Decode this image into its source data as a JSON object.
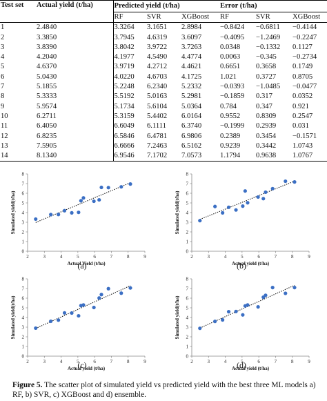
{
  "table": {
    "headers": {
      "test_set": "Test set",
      "actual_yield": "Actual yield (t/ha)",
      "predicted_group": "Predicted yield (t/ha)",
      "error_group": "Error (t/ha)",
      "models": [
        "RF",
        "SVR",
        "XGBoost"
      ]
    },
    "rows": [
      {
        "test": "1",
        "actual": "2.4840",
        "rf": "3.3264",
        "svr": "3.1651",
        "xgb": "2.8984",
        "e_rf": "−0.8424",
        "e_svr": "−0.6811",
        "e_xgb": "−0.4144"
      },
      {
        "test": "2",
        "actual": "3.3850",
        "rf": "3.7945",
        "svr": "4.6319",
        "xgb": "3.6097",
        "e_rf": "−0.4095",
        "e_svr": "−1.2469",
        "e_xgb": "−0.2247"
      },
      {
        "test": "3",
        "actual": "3.8390",
        "rf": "3.8042",
        "svr": "3.9722",
        "xgb": "3.7263",
        "e_rf": "0.0348",
        "e_svr": "−0.1332",
        "e_xgb": "0.1127"
      },
      {
        "test": "4",
        "actual": "4.2040",
        "rf": "4.1977",
        "svr": "4.5490",
        "xgb": "4.4774",
        "e_rf": "0.0063",
        "e_svr": "−0.345",
        "e_xgb": "−0.2734"
      },
      {
        "test": "5",
        "actual": "4.6370",
        "rf": "3.9719",
        "svr": "4.2712",
        "xgb": "4.4621",
        "e_rf": "0.6651",
        "e_svr": "0.3658",
        "e_xgb": "0.1749"
      },
      {
        "test": "6",
        "actual": "5.0430",
        "rf": "4.0220",
        "svr": "4.6703",
        "xgb": "4.1725",
        "e_rf": "1.021",
        "e_svr": "0.3727",
        "e_xgb": "0.8705"
      },
      {
        "test": "7",
        "actual": "5.1855",
        "rf": "5.2248",
        "svr": "6.2340",
        "xgb": "5.2332",
        "e_rf": "−0.0393",
        "e_svr": "−1.0485",
        "e_xgb": "−0.0477"
      },
      {
        "test": "8",
        "actual": "5.3333",
        "rf": "5.5192",
        "svr": "5.0163",
        "xgb": "5.2981",
        "e_rf": "−0.1859",
        "e_svr": "0.317",
        "e_xgb": "0.0352"
      },
      {
        "test": "9",
        "actual": "5.9574",
        "rf": "5.1734",
        "svr": "5.6104",
        "xgb": "5.0364",
        "e_rf": "0.784",
        "e_svr": "0.347",
        "e_xgb": "0.921"
      },
      {
        "test": "10",
        "actual": "6.2711",
        "rf": "5.3159",
        "svr": "5.4402",
        "xgb": "6.0164",
        "e_rf": "0.9552",
        "e_svr": "0.8309",
        "e_xgb": "0.2547"
      },
      {
        "test": "11",
        "actual": "6.4050",
        "rf": "6.6049",
        "svr": "6.1111",
        "xgb": "6.3740",
        "e_rf": "−0.1999",
        "e_svr": "0.2939",
        "e_xgb": "0.031"
      },
      {
        "test": "12",
        "actual": "6.8235",
        "rf": "6.5846",
        "svr": "6.4781",
        "xgb": "6.9806",
        "e_rf": "0.2389",
        "e_svr": "0.3454",
        "e_xgb": "−0.1571"
      },
      {
        "test": "13",
        "actual": "7.5905",
        "rf": "6.6666",
        "svr": "7.2463",
        "xgb": "6.5162",
        "e_rf": "0.9239",
        "e_svr": "0.3442",
        "e_xgb": "1.0743"
      },
      {
        "test": "14",
        "actual": "8.1340",
        "rf": "6.9546",
        "svr": "7.1702",
        "xgb": "7.0573",
        "e_rf": "1.1794",
        "e_svr": "0.9638",
        "e_xgb": "1.0767"
      }
    ]
  },
  "chart_data": [
    {
      "type": "scatter",
      "panel": "(a)",
      "x": [
        2.484,
        3.385,
        3.839,
        4.204,
        4.637,
        5.043,
        5.1855,
        5.3333,
        5.9574,
        6.2711,
        6.405,
        6.8235,
        7.5905,
        8.134
      ],
      "y": [
        3.3264,
        3.7945,
        3.8042,
        4.1977,
        3.9719,
        4.022,
        5.2248,
        5.5192,
        5.1734,
        5.3159,
        6.6049,
        6.5846,
        6.6666,
        6.9546
      ],
      "xlabel": "Actual Yield (t/ha)",
      "ylabel": "Simulated yield(t/ha)",
      "xlim": [
        2,
        9
      ],
      "ylim": [
        0,
        8
      ],
      "xticks": [
        2,
        3,
        4,
        5,
        6,
        7,
        8,
        9
      ],
      "yticks": [
        0,
        1,
        2,
        3,
        4,
        5,
        6,
        7,
        8
      ],
      "trendline": "dotted linear",
      "grid": false,
      "marker_color": "#3b6fc4"
    },
    {
      "type": "scatter",
      "panel": "(b)",
      "x": [
        2.484,
        3.385,
        3.839,
        4.204,
        4.637,
        5.043,
        5.1855,
        5.3333,
        5.9574,
        6.2711,
        6.405,
        6.8235,
        7.5905,
        8.134
      ],
      "y": [
        3.1651,
        4.6319,
        3.9722,
        4.549,
        4.2712,
        4.6703,
        6.234,
        5.0163,
        5.6104,
        5.4402,
        6.1111,
        6.4781,
        7.2463,
        7.1702
      ],
      "xlabel": "Actual yield (t/ha)",
      "ylabel": "Simulated yield(t/ha)",
      "xlim": [
        2,
        9
      ],
      "ylim": [
        0,
        8
      ],
      "xticks": [
        2,
        3,
        4,
        5,
        6,
        7,
        8,
        9
      ],
      "yticks": [
        0,
        1,
        2,
        3,
        4,
        5,
        6,
        7,
        8
      ],
      "trendline": "dotted linear",
      "grid": false,
      "marker_color": "#3b6fc4"
    },
    {
      "type": "scatter",
      "panel": "(c)",
      "x": [
        2.484,
        3.385,
        3.839,
        4.204,
        4.637,
        5.043,
        5.1855,
        5.3333,
        5.9574,
        6.2711,
        6.405,
        6.8235,
        7.5905,
        8.134
      ],
      "y": [
        2.8984,
        3.6097,
        3.7263,
        4.4774,
        4.4621,
        4.1725,
        5.2332,
        5.2981,
        5.0364,
        6.0164,
        6.374,
        6.9806,
        6.5162,
        7.0573
      ],
      "xlabel": "Actual yield (t/ha)",
      "ylabel": "Simulated yield(t/ha)",
      "xlim": [
        2,
        9
      ],
      "ylim": [
        0,
        8
      ],
      "xticks": [
        2,
        3,
        4,
        5,
        6,
        7,
        8,
        9
      ],
      "yticks": [
        0,
        1,
        2,
        3,
        4,
        5,
        6,
        7,
        8
      ],
      "trendline": "dotted linear",
      "grid": false,
      "marker_color": "#3b6fc4"
    },
    {
      "type": "scatter",
      "panel": "(d)",
      "x": [
        2.484,
        3.385,
        3.839,
        4.204,
        4.637,
        5.043,
        5.1855,
        5.3333,
        5.9574,
        6.2711,
        6.405,
        6.8235,
        7.5905,
        8.134
      ],
      "y": [
        2.88,
        3.6,
        3.75,
        4.6,
        4.62,
        4.27,
        5.2,
        5.3,
        5.1,
        6.1,
        6.3,
        7.1,
        6.5,
        7.1
      ],
      "xlabel": "Actual yield (t/ha)",
      "ylabel": "Simulated yield(t/ha)",
      "xlim": [
        2,
        9
      ],
      "ylim": [
        0,
        8
      ],
      "xticks": [
        2,
        3,
        4,
        5,
        6,
        7,
        8,
        9
      ],
      "yticks": [
        0,
        1,
        2,
        3,
        4,
        5,
        6,
        7,
        8
      ],
      "trendline": "dotted linear",
      "grid": false,
      "marker_color": "#3b6fc4"
    }
  ],
  "caption": {
    "label": "Figure 5.",
    "text": " The scatter plot of simulated yield vs predicted yield with the best three ML models a) RF, b) SVR, c) XGBoost and d) ensemble."
  }
}
